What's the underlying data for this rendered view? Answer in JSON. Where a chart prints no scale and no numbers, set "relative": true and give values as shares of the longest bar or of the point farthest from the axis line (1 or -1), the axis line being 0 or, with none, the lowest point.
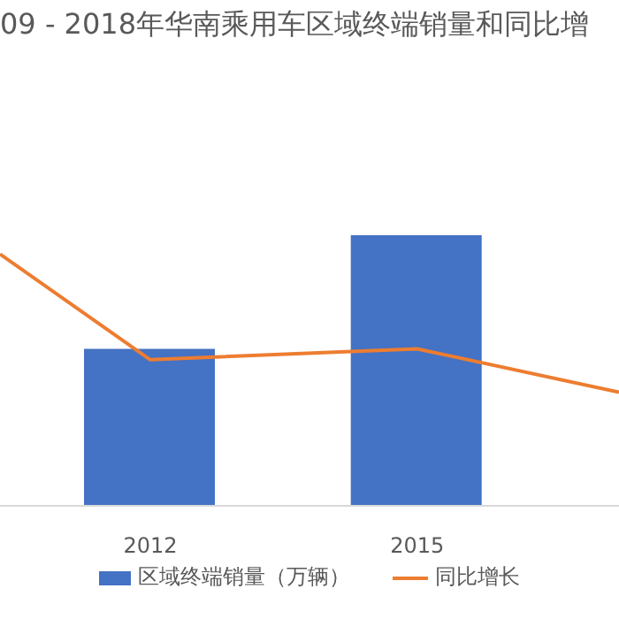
{
  "chart_data": {
    "type": "bar",
    "title": "09 - 2018年华南乘用车区域终端销量和同比增",
    "relative": true,
    "x": [
      2012,
      2015
    ],
    "xlim": [
      2010.31,
      2017.27
    ],
    "xticks": [
      2012,
      2015
    ],
    "series": [
      {
        "name": "区域终端销量（万辆）",
        "color": "#4472c4",
        "values": [
          0.58,
          1
        ]
      },
      {
        "name": "同比增长",
        "type": "line",
        "color": "#ed7d31",
        "x": [
          2010.31,
          2012,
          2015,
          2017.27
        ],
        "values": [
          0.93,
          0.54,
          0.58,
          0.42
        ]
      }
    ],
    "legend": "bottom",
    "grid": false,
    "marker": "none",
    "line_style": "solid"
  }
}
